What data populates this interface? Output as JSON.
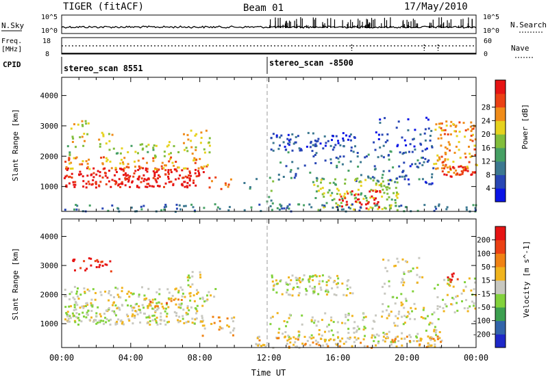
{
  "header": {
    "title": "TIGER (fitACF)",
    "beam": "Beam 01",
    "date": "17/May/2010"
  },
  "panels": {
    "nsky_label": "N.Sky",
    "nsearch_label": "N.Search",
    "freq_label_1": "Freq.",
    "freq_label_2": "[MHz]",
    "nave_label": "Nave",
    "cpid_label": "CPID",
    "nsky_ticks": [
      "10^5",
      "10^0"
    ],
    "nsearch_ticks": [
      "10^5",
      "10^0"
    ],
    "freq_ticks": [
      "18",
      "8"
    ],
    "nave_ticks": [
      "60",
      "0"
    ],
    "cpid_segments": [
      "stereo_scan 8551",
      "stereo_scan -8500"
    ]
  },
  "chart_data": [
    {
      "type": "heatmap",
      "name": "power-panel",
      "xlabel": "Time UT",
      "ylabel": "Slant Range [km]",
      "x_ticks": [
        "00:00",
        "04:00",
        "08:00",
        "12:00",
        "16:00",
        "20:00",
        "00:00"
      ],
      "x_range_hours": [
        0,
        24
      ],
      "y_ticks": [
        1000,
        2000,
        3000,
        4000
      ],
      "ylim": [
        180,
        4600
      ],
      "colorbar": {
        "label": "Power [dB]",
        "ticks": [
          "4",
          "8",
          "12",
          "16",
          "20",
          "24",
          "28"
        ],
        "colors": [
          "#0a14e6",
          "#2846b4",
          "#3c7890",
          "#46a064",
          "#82be3c",
          "#e6d21e",
          "#f08c19",
          "#eb4114",
          "#e61414"
        ]
      }
    },
    {
      "type": "heatmap",
      "name": "velocity-panel",
      "xlabel": "Time UT",
      "ylabel": "Slant Range [km]",
      "x_ticks": [
        "00:00",
        "04:00",
        "08:00",
        "12:00",
        "16:00",
        "20:00",
        "00:00"
      ],
      "x_range_hours": [
        0,
        24
      ],
      "y_ticks": [
        1000,
        2000,
        3000,
        4000
      ],
      "ylim": [
        180,
        4600
      ],
      "colorbar": {
        "label": "Velocity [m s^-1]",
        "ticks": [
          "200",
          "100",
          "50",
          "15",
          "-15",
          "-50",
          "-100",
          "-200"
        ],
        "colors": [
          "#1e28c8",
          "#3264aa",
          "#3ca050",
          "#82d23c",
          "#c8c8c0",
          "#f0b41e",
          "#f08214",
          "#eb4114",
          "#e61414"
        ]
      }
    }
  ],
  "footer": {
    "xlabel": "Time UT"
  }
}
